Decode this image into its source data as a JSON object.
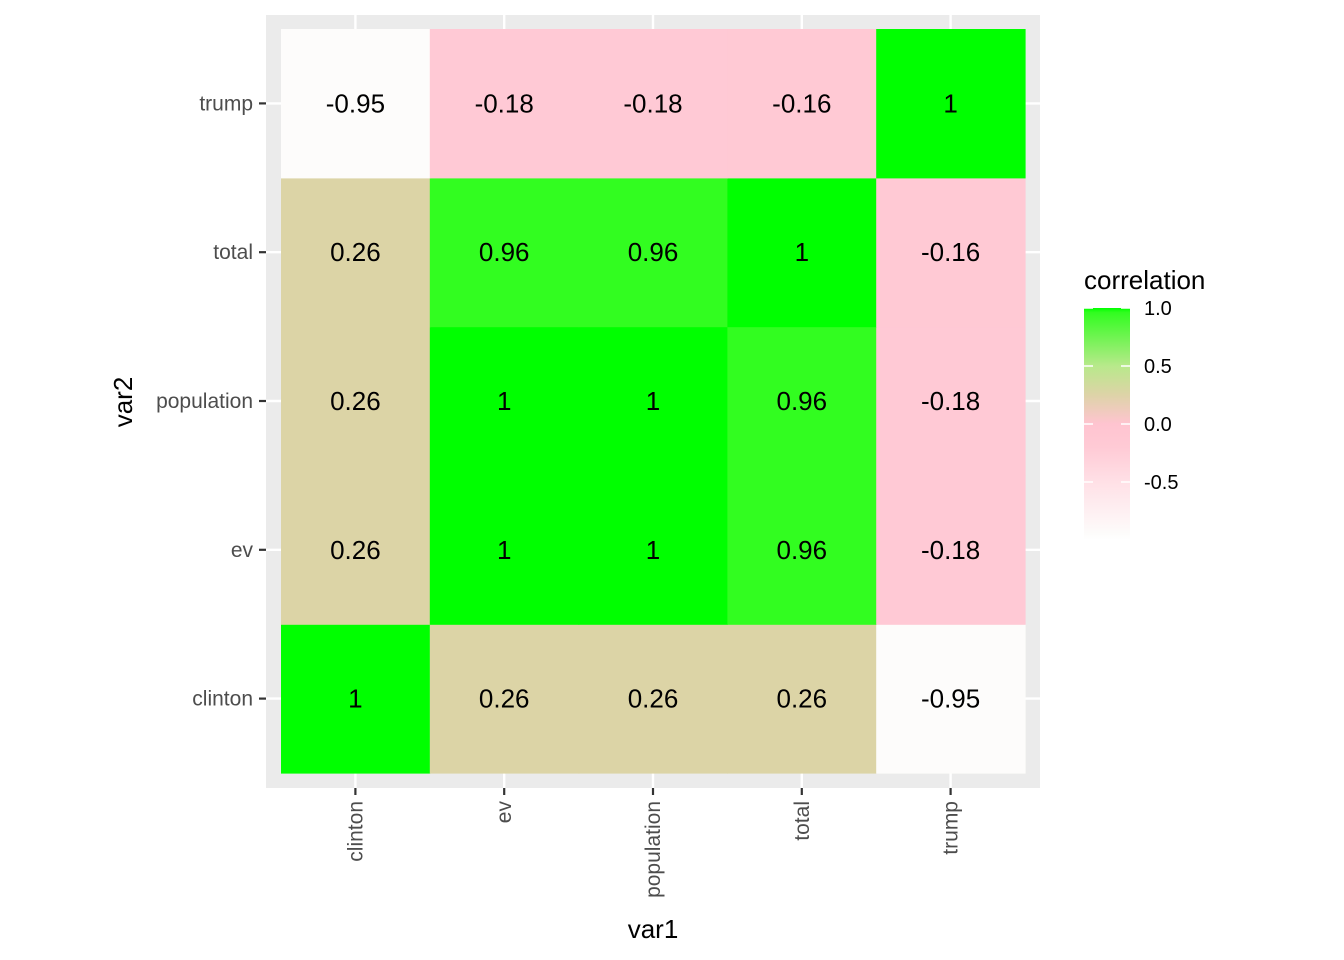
{
  "chart_data": {
    "type": "heatmap",
    "x_categories": [
      "clinton",
      "ev",
      "population",
      "total",
      "trump"
    ],
    "y_categories": [
      "clinton",
      "ev",
      "population",
      "total",
      "trump"
    ],
    "cells": [
      {
        "x": "clinton",
        "y": "clinton",
        "value": 1,
        "label": "1"
      },
      {
        "x": "ev",
        "y": "clinton",
        "value": 0.26,
        "label": "0.26"
      },
      {
        "x": "population",
        "y": "clinton",
        "value": 0.26,
        "label": "0.26"
      },
      {
        "x": "total",
        "y": "clinton",
        "value": 0.26,
        "label": "0.26"
      },
      {
        "x": "trump",
        "y": "clinton",
        "value": -0.95,
        "label": "-0.95"
      },
      {
        "x": "clinton",
        "y": "ev",
        "value": 0.26,
        "label": "0.26"
      },
      {
        "x": "ev",
        "y": "ev",
        "value": 1,
        "label": "1"
      },
      {
        "x": "population",
        "y": "ev",
        "value": 1,
        "label": "1"
      },
      {
        "x": "total",
        "y": "ev",
        "value": 0.96,
        "label": "0.96"
      },
      {
        "x": "trump",
        "y": "ev",
        "value": -0.18,
        "label": "-0.18"
      },
      {
        "x": "clinton",
        "y": "population",
        "value": 0.26,
        "label": "0.26"
      },
      {
        "x": "ev",
        "y": "population",
        "value": 1,
        "label": "1"
      },
      {
        "x": "population",
        "y": "population",
        "value": 1,
        "label": "1"
      },
      {
        "x": "total",
        "y": "population",
        "value": 0.96,
        "label": "0.96"
      },
      {
        "x": "trump",
        "y": "population",
        "value": -0.18,
        "label": "-0.18"
      },
      {
        "x": "clinton",
        "y": "total",
        "value": 0.26,
        "label": "0.26"
      },
      {
        "x": "ev",
        "y": "total",
        "value": 0.96,
        "label": "0.96"
      },
      {
        "x": "population",
        "y": "total",
        "value": 0.96,
        "label": "0.96"
      },
      {
        "x": "total",
        "y": "total",
        "value": 1,
        "label": "1"
      },
      {
        "x": "trump",
        "y": "total",
        "value": -0.16,
        "label": "-0.16"
      },
      {
        "x": "clinton",
        "y": "trump",
        "value": -0.95,
        "label": "-0.95"
      },
      {
        "x": "ev",
        "y": "trump",
        "value": -0.18,
        "label": "-0.18"
      },
      {
        "x": "population",
        "y": "trump",
        "value": -0.18,
        "label": "-0.18"
      },
      {
        "x": "total",
        "y": "trump",
        "value": -0.16,
        "label": "-0.16"
      },
      {
        "x": "trump",
        "y": "trump",
        "value": 1,
        "label": "1"
      }
    ],
    "xlabel": "var1",
    "ylabel": "var2",
    "legend": {
      "title": "correlation",
      "placement": "right",
      "ticks": [
        {
          "value": 1.0,
          "label": "1.0"
        },
        {
          "value": 0.5,
          "label": "0.5"
        },
        {
          "value": 0.0,
          "label": "0.0"
        },
        {
          "value": -0.5,
          "label": "-0.5"
        }
      ],
      "range": [
        -1,
        1
      ]
    },
    "color_scale": [
      {
        "value": -1.0,
        "color": "#ffffff"
      },
      {
        "value": -0.95,
        "color": "#fdfcfb"
      },
      {
        "value": -0.5,
        "color": "#ffe0e6"
      },
      {
        "value": -0.2,
        "color": "#ffcad5"
      },
      {
        "value": 0.0,
        "color": "#ffc4d0"
      },
      {
        "value": 0.26,
        "color": "#dcd4a6"
      },
      {
        "value": 0.5,
        "color": "#b8e98b"
      },
      {
        "value": 0.96,
        "color": "#32fd20"
      },
      {
        "value": 1.0,
        "color": "#00ff00"
      }
    ],
    "panel_background": "#ebebeb",
    "grid_color": "#ffffff"
  }
}
